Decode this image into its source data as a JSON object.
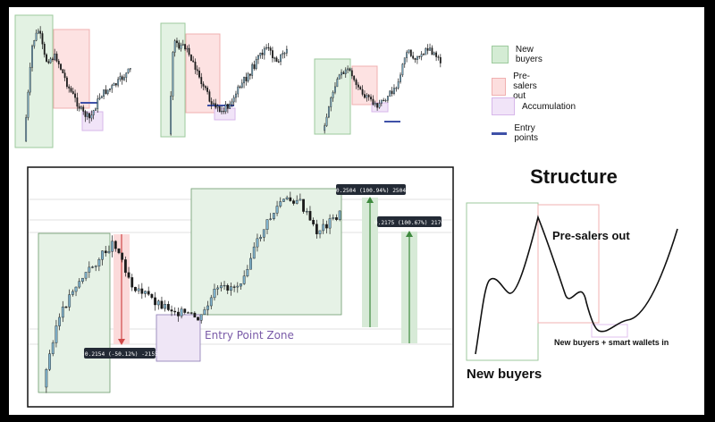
{
  "legend": {
    "items": [
      {
        "label": "New buyers",
        "color": "#d4ecd4",
        "border": "#9dca9d"
      },
      {
        "label": "Pre-salers out",
        "color": "#fcdede",
        "border": "#f0b0b0"
      },
      {
        "label": "Accumulation",
        "color": "#f1e4f8",
        "border": "#d7b7ea"
      },
      {
        "label": "Entry points",
        "color": "#3f51a8",
        "border": "#3f51a8"
      }
    ]
  },
  "main_chart": {
    "zone_label": "Entry Point Zone",
    "measure_down": "-0.2154 (-50.12%) -2155",
    "measure_up_1": "0.2504 (100.94%) 2504",
    "measure_up_2": "0.2175 (100.67%) 2176"
  },
  "structure": {
    "title": "Structure",
    "label_presale": "Pre-salers out",
    "label_new_buyers": "New buyers",
    "label_smart": "New buyers + smart wallets in"
  },
  "colors": {
    "green_zone": "#e6f2e6",
    "red_zone": "#fde4e4",
    "purple_zone": "#efe6f6",
    "candle_up": "#7fb2cc",
    "candle_down": "#1a1a1a"
  }
}
